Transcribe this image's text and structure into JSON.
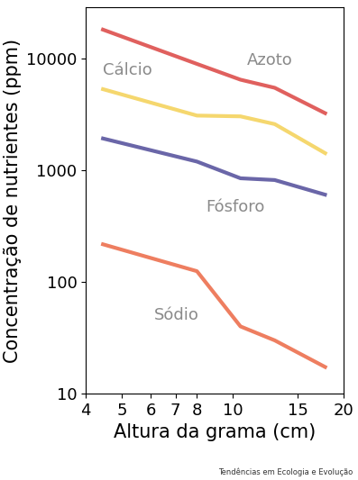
{
  "chart_data": {
    "type": "line",
    "xlabel": "Altura da grama (cm)",
    "ylabel": "Concentração de nutrientes (ppm)",
    "source": "Tendências em Ecologia e Evolução",
    "log": true,
    "grid": false,
    "xlim": [
      4,
      20
    ],
    "ylim": [
      10,
      29000
    ],
    "xticks": [
      4,
      5,
      6,
      7,
      8,
      10,
      15,
      20
    ],
    "yticks": [
      10,
      100,
      1000,
      10000
    ],
    "x": [
      4.4,
      8,
      10.5,
      13,
      18
    ],
    "series": [
      {
        "name": "Azoto",
        "color": "#e0605e",
        "values": [
          18500,
          9000,
          6500,
          5500,
          3200
        ]
      },
      {
        "name": "Cálcio",
        "color": "#f5d76e",
        "values": [
          5400,
          3100,
          3050,
          2600,
          1400
        ]
      },
      {
        "name": "Fósforo",
        "color": "#6a66a8",
        "values": [
          1950,
          1200,
          850,
          820,
          600
        ]
      },
      {
        "name": "Sódio",
        "color": "#ee7e60",
        "values": [
          220,
          125,
          40,
          30,
          17
        ]
      }
    ]
  }
}
